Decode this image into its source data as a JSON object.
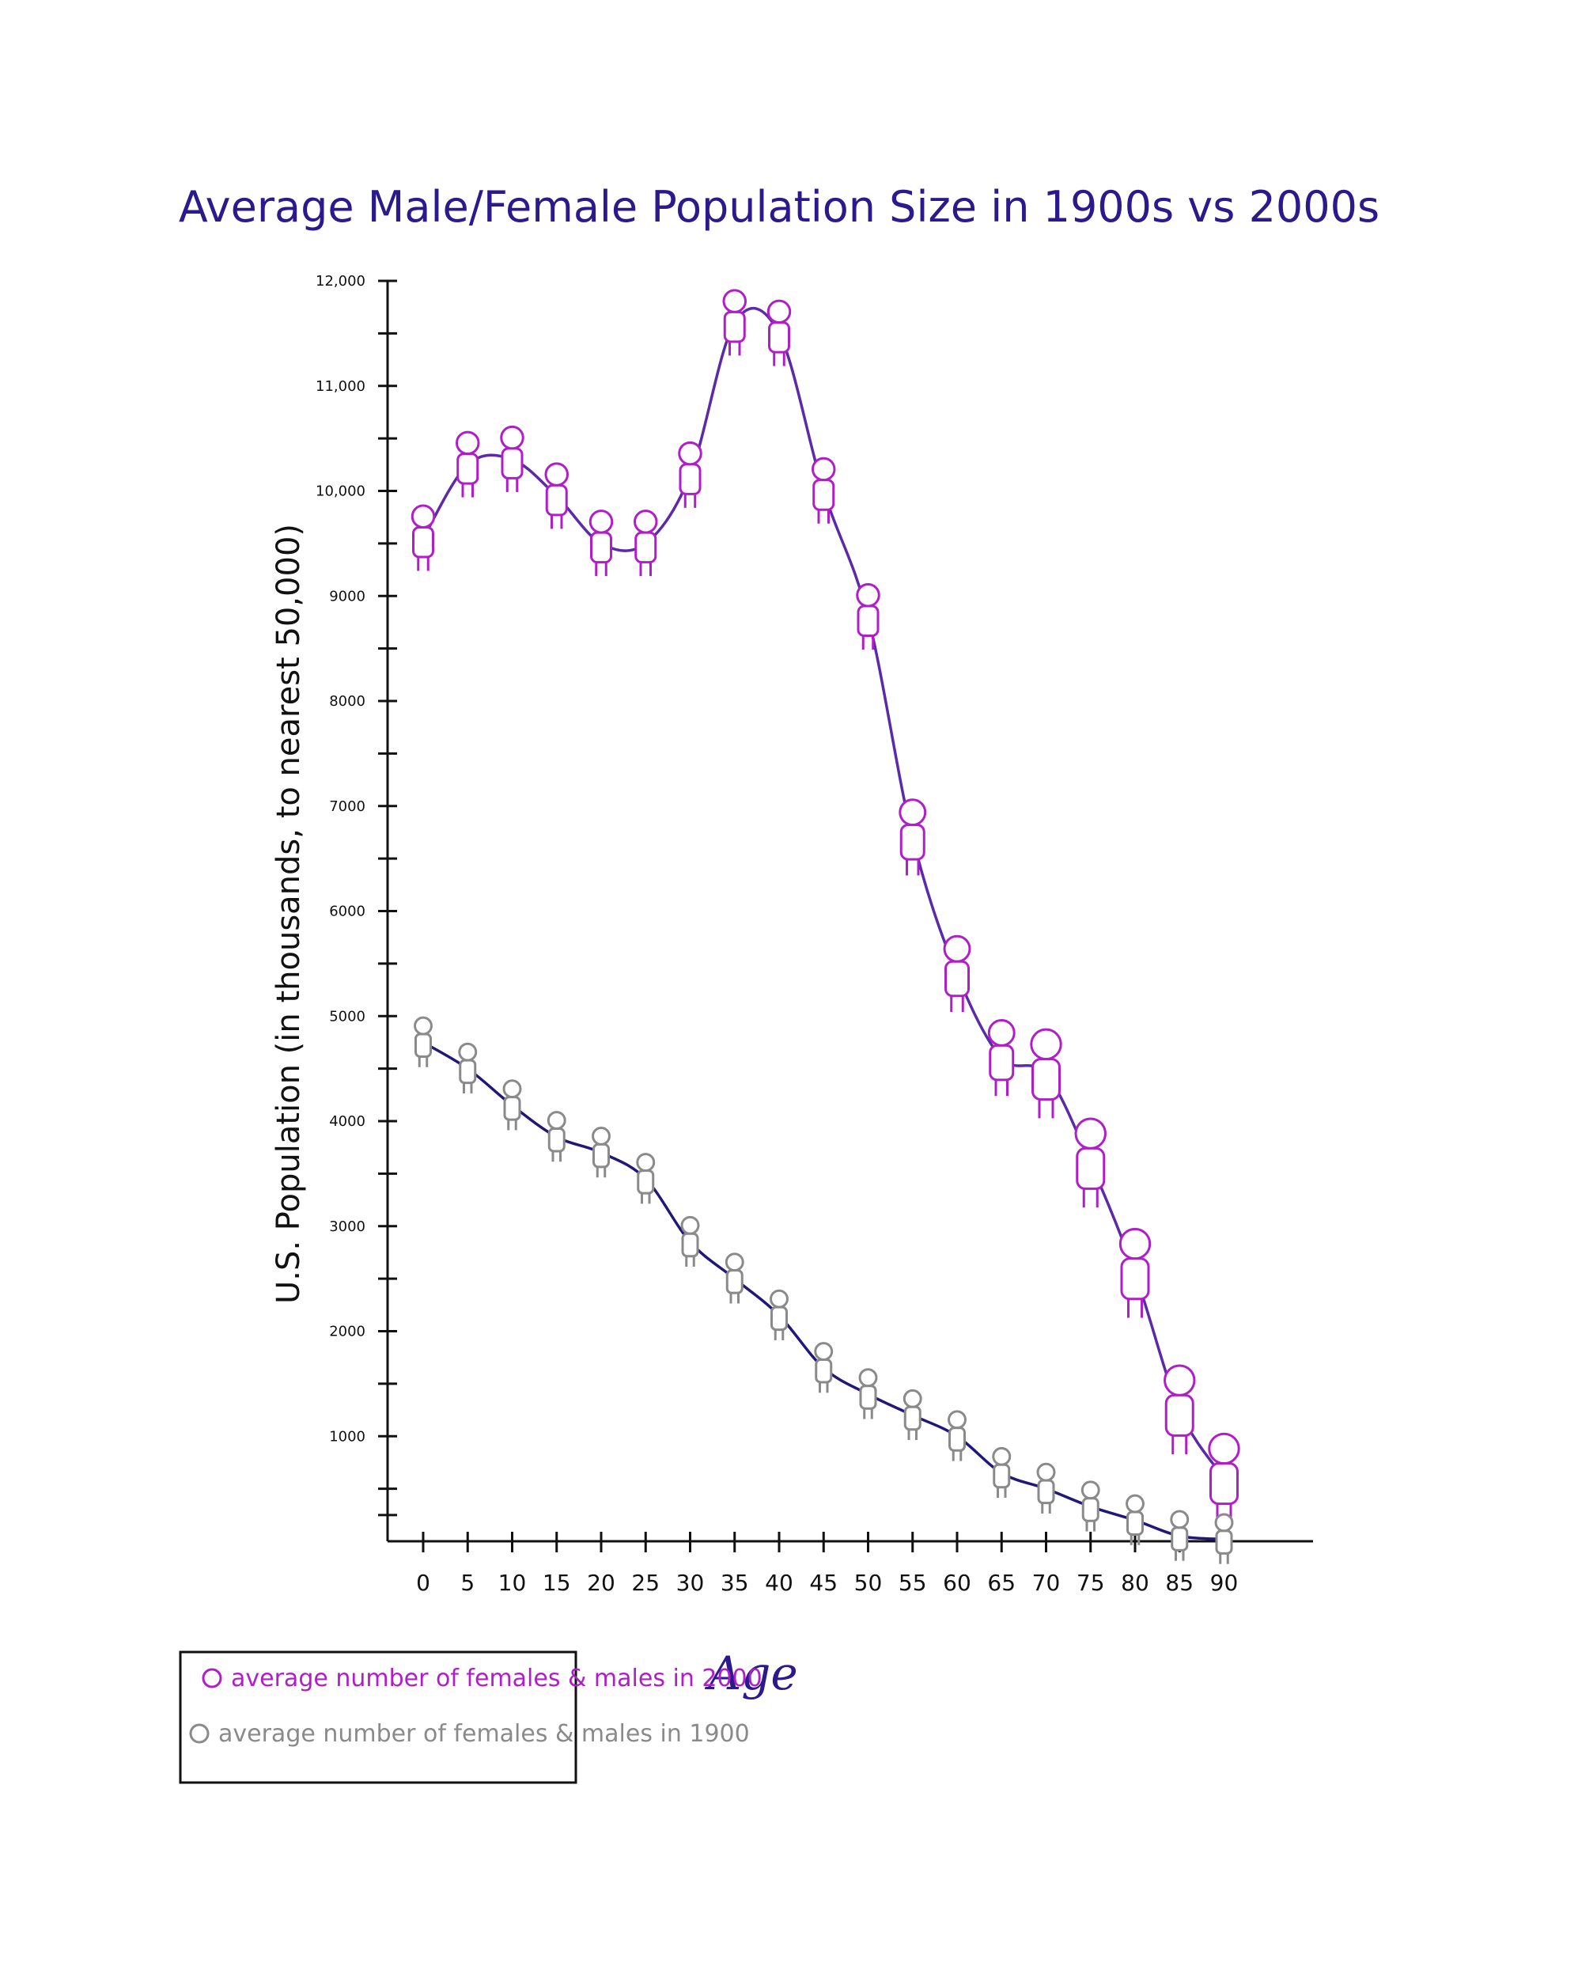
{
  "chart_data": {
    "type": "line",
    "title": "Average Male/Female Population Size in 1900s vs 2000s",
    "xlabel": "Age",
    "ylabel": "U.S. Population (in thousands, to nearest 50,000)",
    "x": [
      0,
      5,
      10,
      15,
      20,
      25,
      30,
      35,
      40,
      45,
      50,
      55,
      60,
      65,
      70,
      75,
      80,
      85,
      90
    ],
    "x_tick_labels": [
      "0",
      "5",
      "10",
      "15",
      "20",
      "25",
      "30",
      "35",
      "40",
      "45",
      "50",
      "55",
      "60",
      "65",
      "70",
      "75",
      "80",
      "85",
      "90"
    ],
    "y_tick_values": [
      1000,
      2000,
      3000,
      4000,
      5000,
      6000,
      7000,
      8000,
      9000,
      10000,
      11000,
      12000
    ],
    "y_tick_labels": [
      "1000",
      "2000",
      "3000",
      "4000",
      "5000",
      "6000",
      "7000",
      "8000",
      "9000",
      "10,000",
      "11,000",
      "12,000"
    ],
    "ylim": [
      0,
      12000
    ],
    "xlim": [
      -4,
      100
    ],
    "grid": false,
    "legend_position": "bottom-left",
    "series": [
      {
        "name": "average number of females & males in 2000",
        "color": "#b01ec8",
        "line_color": "#5a2aa8",
        "marker": "person-icon",
        "x": [
          0,
          5,
          10,
          15,
          20,
          25,
          30,
          35,
          40,
          45,
          50,
          55,
          60,
          65,
          70,
          75,
          80,
          85,
          90
        ],
        "values": [
          9550,
          10250,
          10300,
          9950,
          9500,
          9500,
          10150,
          11600,
          11500,
          10000,
          8800,
          6700,
          5400,
          4600,
          4450,
          3600,
          2550,
          1250,
          600
        ]
      },
      {
        "name": "average number of females & males in 1900",
        "color": "#8a8a8a",
        "line_color": "#201878",
        "marker": "person-icon",
        "x": [
          0,
          5,
          10,
          15,
          20,
          25,
          30,
          35,
          40,
          45,
          50,
          55,
          60,
          65,
          70,
          75,
          80,
          85,
          90
        ],
        "values": [
          4750,
          4500,
          4150,
          3850,
          3700,
          3450,
          2850,
          2500,
          2150,
          1650,
          1400,
          1200,
          1000,
          650,
          500,
          330,
          200,
          50,
          20
        ]
      }
    ]
  }
}
